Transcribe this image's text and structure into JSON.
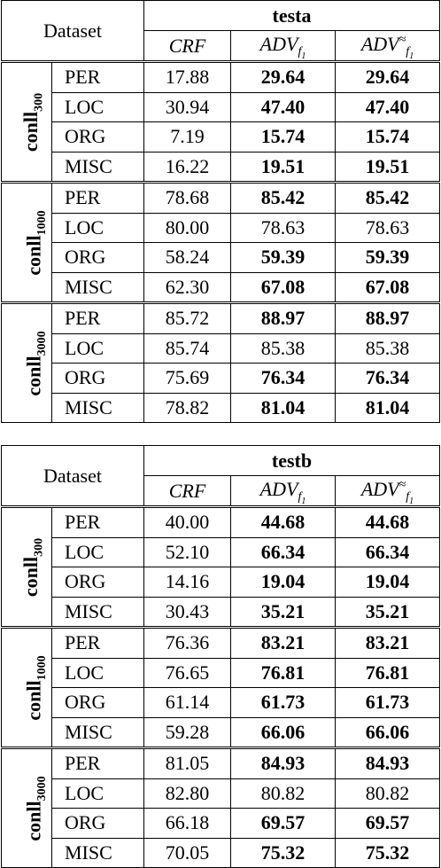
{
  "tables": [
    {
      "dataset_label": "Dataset",
      "split": "testa",
      "columns": [
        {
          "base": "CRF"
        },
        {
          "base": "ADV",
          "sub": "f",
          "subsub": "1"
        },
        {
          "base": "ADV",
          "sup": "≈",
          "sub": "f",
          "subsub": "1"
        }
      ],
      "groups": [
        {
          "name": "conll",
          "size": "300",
          "rows": [
            {
              "label": "PER",
              "values": [
                "17.88",
                "29.64",
                "29.64"
              ],
              "bold": [
                false,
                true,
                true
              ]
            },
            {
              "label": "LOC",
              "values": [
                "30.94",
                "47.40",
                "47.40"
              ],
              "bold": [
                false,
                true,
                true
              ]
            },
            {
              "label": "ORG",
              "values": [
                "7.19",
                "15.74",
                "15.74"
              ],
              "bold": [
                false,
                true,
                true
              ]
            },
            {
              "label": "MISC",
              "values": [
                "16.22",
                "19.51",
                "19.51"
              ],
              "bold": [
                false,
                true,
                true
              ]
            }
          ]
        },
        {
          "name": "conll",
          "size": "1000",
          "rows": [
            {
              "label": "PER",
              "values": [
                "78.68",
                "85.42",
                "85.42"
              ],
              "bold": [
                false,
                true,
                true
              ]
            },
            {
              "label": "LOC",
              "values": [
                "80.00",
                "78.63",
                "78.63"
              ],
              "bold": [
                false,
                false,
                false
              ]
            },
            {
              "label": "ORG",
              "values": [
                "58.24",
                "59.39",
                "59.39"
              ],
              "bold": [
                false,
                true,
                true
              ]
            },
            {
              "label": "MISC",
              "values": [
                "62.30",
                "67.08",
                "67.08"
              ],
              "bold": [
                false,
                true,
                true
              ]
            }
          ]
        },
        {
          "name": "conll",
          "size": "3000",
          "rows": [
            {
              "label": "PER",
              "values": [
                "85.72",
                "88.97",
                "88.97"
              ],
              "bold": [
                false,
                true,
                true
              ]
            },
            {
              "label": "LOC",
              "values": [
                "85.74",
                "85.38",
                "85.38"
              ],
              "bold": [
                false,
                false,
                false
              ]
            },
            {
              "label": "ORG",
              "values": [
                "75.69",
                "76.34",
                "76.34"
              ],
              "bold": [
                false,
                true,
                true
              ]
            },
            {
              "label": "MISC",
              "values": [
                "78.82",
                "81.04",
                "81.04"
              ],
              "bold": [
                false,
                true,
                true
              ]
            }
          ]
        }
      ]
    },
    {
      "dataset_label": "Dataset",
      "split": "testb",
      "columns": [
        {
          "base": "CRF"
        },
        {
          "base": "ADV",
          "sub": "f",
          "subsub": "1"
        },
        {
          "base": "ADV",
          "sup": "≈",
          "sub": "f",
          "subsub": "1"
        }
      ],
      "groups": [
        {
          "name": "conll",
          "size": "300",
          "rows": [
            {
              "label": "PER",
              "values": [
                "40.00",
                "44.68",
                "44.68"
              ],
              "bold": [
                false,
                true,
                true
              ]
            },
            {
              "label": "LOC",
              "values": [
                "52.10",
                "66.34",
                "66.34"
              ],
              "bold": [
                false,
                true,
                true
              ]
            },
            {
              "label": "ORG",
              "values": [
                "14.16",
                "19.04",
                "19.04"
              ],
              "bold": [
                false,
                true,
                true
              ]
            },
            {
              "label": "MISC",
              "values": [
                "30.43",
                "35.21",
                "35.21"
              ],
              "bold": [
                false,
                true,
                true
              ]
            }
          ]
        },
        {
          "name": "conll",
          "size": "1000",
          "rows": [
            {
              "label": "PER",
              "values": [
                "76.36",
                "83.21",
                "83.21"
              ],
              "bold": [
                false,
                true,
                true
              ]
            },
            {
              "label": "LOC",
              "values": [
                "76.65",
                "76.81",
                "76.81"
              ],
              "bold": [
                false,
                true,
                true
              ]
            },
            {
              "label": "ORG",
              "values": [
                "61.14",
                "61.73",
                "61.73"
              ],
              "bold": [
                false,
                true,
                true
              ]
            },
            {
              "label": "MISC",
              "values": [
                "59.28",
                "66.06",
                "66.06"
              ],
              "bold": [
                false,
                true,
                true
              ]
            }
          ]
        },
        {
          "name": "conll",
          "size": "3000",
          "rows": [
            {
              "label": "PER",
              "values": [
                "81.05",
                "84.93",
                "84.93"
              ],
              "bold": [
                false,
                true,
                true
              ]
            },
            {
              "label": "LOC",
              "values": [
                "82.80",
                "80.82",
                "80.82"
              ],
              "bold": [
                false,
                false,
                false
              ]
            },
            {
              "label": "ORG",
              "values": [
                "66.18",
                "69.57",
                "69.57"
              ],
              "bold": [
                false,
                true,
                true
              ]
            },
            {
              "label": "MISC",
              "values": [
                "70.05",
                "75.32",
                "75.32"
              ],
              "bold": [
                false,
                true,
                true
              ]
            }
          ]
        }
      ]
    }
  ]
}
